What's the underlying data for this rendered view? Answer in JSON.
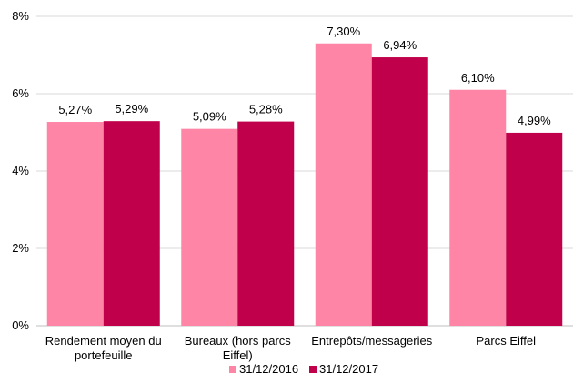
{
  "chart_data": {
    "type": "bar",
    "title": "",
    "xlabel": "",
    "ylabel": "",
    "categories": [
      [
        "Rendement moyen du",
        "portefeuille"
      ],
      [
        "Bureaux (hors parcs",
        "Eiffel)"
      ],
      [
        "Entrepôts/messageries"
      ],
      [
        "Parcs Eiffel"
      ]
    ],
    "series": [
      {
        "name": "31/12/2016",
        "values": [
          5.27,
          5.09,
          7.3,
          6.1
        ],
        "labels": [
          "5,27%",
          "5,09%",
          "7,30%",
          "6,10%"
        ],
        "color": "#FF85A6"
      },
      {
        "name": "31/12/2017",
        "values": [
          5.29,
          5.28,
          6.94,
          4.99
        ],
        "labels": [
          "5,29%",
          "5,28%",
          "6,94%",
          "4,99%"
        ],
        "color": "#C0004B"
      }
    ],
    "ylim": [
      0,
      8
    ],
    "yticks": [
      0,
      2,
      4,
      6,
      8
    ],
    "ytick_labels": [
      "0%",
      "2%",
      "4%",
      "6%",
      "8%"
    ],
    "grid": true,
    "legend": "bottom"
  },
  "colors": {
    "grid": "#D9D9D9",
    "axis": "#BFBFBF"
  }
}
